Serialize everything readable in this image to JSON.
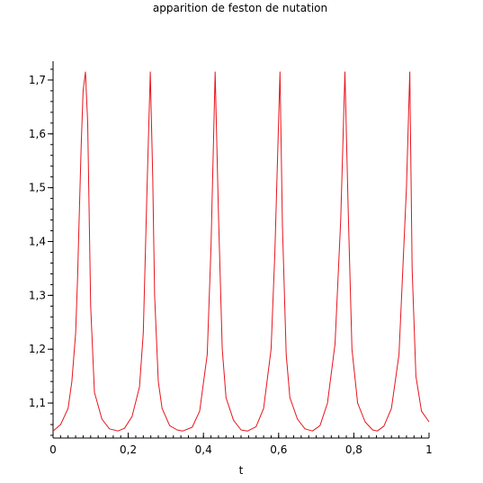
{
  "chart_data": {
    "type": "line",
    "title": "apparition de feston de nutation",
    "xlabel": "t",
    "ylabel": "",
    "xlim": [
      0,
      1
    ],
    "ylim": [
      1.035,
      1.735
    ],
    "grid": false,
    "x_ticks": [
      {
        "value": 0,
        "label": "0"
      },
      {
        "value": 0.2,
        "label": "0,2"
      },
      {
        "value": 0.4,
        "label": "0,4"
      },
      {
        "value": 0.6,
        "label": "0,6"
      },
      {
        "value": 0.8,
        "label": "0,8"
      },
      {
        "value": 1,
        "label": "1"
      }
    ],
    "y_ticks": [
      {
        "value": 1.1,
        "label": "1,1"
      },
      {
        "value": 1.2,
        "label": "1,2"
      },
      {
        "value": 1.3,
        "label": "1,3"
      },
      {
        "value": 1.4,
        "label": "1,4"
      },
      {
        "value": 1.5,
        "label": "1,5"
      },
      {
        "value": 1.6,
        "label": "1,6"
      },
      {
        "value": 1.7,
        "label": "1,7"
      }
    ],
    "series": [
      {
        "color": "#e8141c",
        "period": 0.1725,
        "first_peak_x": 0.0862,
        "y_min": 1.048,
        "y_max": 1.715,
        "x": [
          0,
          0.02,
          0.04,
          0.05,
          0.06,
          0.065,
          0.07,
          0.075,
          0.08,
          0.0862,
          0.092,
          0.1,
          0.11,
          0.13,
          0.15,
          0.1725,
          0.19,
          0.21,
          0.23,
          0.24,
          0.25,
          0.2587,
          0.265,
          0.27,
          0.28,
          0.29,
          0.31,
          0.33,
          0.345,
          0.37,
          0.39,
          0.41,
          0.42,
          0.4312,
          0.44,
          0.45,
          0.46,
          0.48,
          0.5,
          0.5175,
          0.54,
          0.56,
          0.58,
          0.59,
          0.6037,
          0.61,
          0.62,
          0.63,
          0.65,
          0.67,
          0.69,
          0.71,
          0.73,
          0.75,
          0.765,
          0.7762,
          0.785,
          0.795,
          0.81,
          0.83,
          0.85,
          0.8625,
          0.88,
          0.9,
          0.92,
          0.94,
          0.9487,
          0.955,
          0.965,
          0.98,
          1.0
        ],
        "y": [
          1.048,
          1.06,
          1.09,
          1.14,
          1.23,
          1.33,
          1.46,
          1.58,
          1.68,
          1.715,
          1.62,
          1.28,
          1.12,
          1.07,
          1.052,
          1.048,
          1.053,
          1.075,
          1.13,
          1.23,
          1.5,
          1.715,
          1.52,
          1.3,
          1.14,
          1.09,
          1.058,
          1.05,
          1.048,
          1.055,
          1.085,
          1.19,
          1.39,
          1.715,
          1.45,
          1.2,
          1.11,
          1.068,
          1.05,
          1.048,
          1.056,
          1.09,
          1.2,
          1.38,
          1.715,
          1.43,
          1.19,
          1.11,
          1.07,
          1.052,
          1.048,
          1.058,
          1.1,
          1.21,
          1.44,
          1.715,
          1.46,
          1.2,
          1.1,
          1.065,
          1.05,
          1.048,
          1.057,
          1.09,
          1.19,
          1.5,
          1.715,
          1.35,
          1.15,
          1.085,
          1.065
        ]
      }
    ]
  }
}
